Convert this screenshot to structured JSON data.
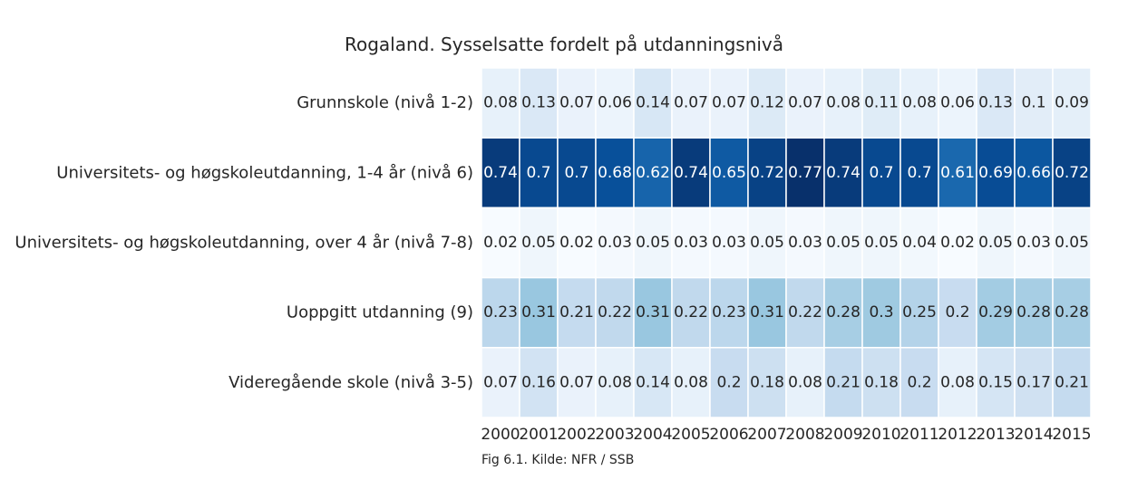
{
  "title": "Rogaland. Sysselsatte fordelt på utdanningsnivå",
  "caption": "Fig 6.1. Kilde: NFR / SSB",
  "chart_data": {
    "type": "heatmap",
    "colormap": "Blues",
    "vmin": 0.02,
    "vmax": 0.77,
    "annotated": true,
    "years": [
      "2000",
      "2001",
      "2002",
      "2003",
      "2004",
      "2005",
      "2006",
      "2007",
      "2008",
      "2009",
      "2010",
      "2011",
      "2012",
      "2013",
      "2014",
      "2015"
    ],
    "rows": [
      {
        "label": "Grunnskole (nivå 1-2)",
        "values": [
          0.08,
          0.13,
          0.07,
          0.06,
          0.14,
          0.07,
          0.07,
          0.12,
          0.07,
          0.08,
          0.11,
          0.08,
          0.06,
          0.13,
          0.1,
          0.09
        ]
      },
      {
        "label": "Universitets- og høgskoleutdanning, 1-4 år (nivå 6)",
        "values": [
          0.74,
          0.7,
          0.7,
          0.68,
          0.62,
          0.74,
          0.65,
          0.72,
          0.77,
          0.74,
          0.7,
          0.7,
          0.61,
          0.69,
          0.66,
          0.72
        ]
      },
      {
        "label": "Universitets- og høgskoleutdanning, over 4 år (nivå 7-8)",
        "values": [
          0.02,
          0.05,
          0.02,
          0.03,
          0.05,
          0.03,
          0.03,
          0.05,
          0.03,
          0.05,
          0.05,
          0.04,
          0.02,
          0.05,
          0.03,
          0.05
        ]
      },
      {
        "label": "Uoppgitt utdanning (9)",
        "values": [
          0.23,
          0.31,
          0.21,
          0.22,
          0.31,
          0.22,
          0.23,
          0.31,
          0.22,
          0.28,
          0.3,
          0.25,
          0.2,
          0.29,
          0.28,
          0.28
        ]
      },
      {
        "label": "Videregående skole (nivå 3-5)",
        "values": [
          0.07,
          0.16,
          0.07,
          0.08,
          0.14,
          0.08,
          0.2,
          0.18,
          0.08,
          0.21,
          0.18,
          0.2,
          0.08,
          0.15,
          0.17,
          0.21
        ]
      }
    ]
  }
}
